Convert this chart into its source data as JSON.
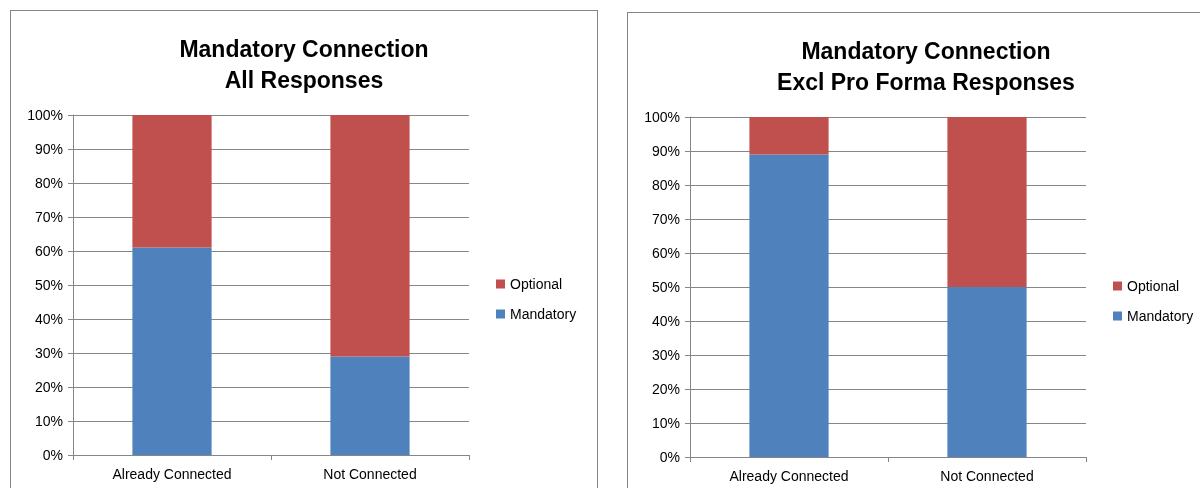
{
  "chart_data": [
    {
      "type": "bar",
      "title": "Mandatory Connection\nAll Responses",
      "categories": [
        "Already Connected",
        "Not Connected"
      ],
      "series": [
        {
          "name": "Mandatory",
          "color": "#4f81bd",
          "values": [
            61,
            29
          ]
        },
        {
          "name": "Optional",
          "color": "#c0504d",
          "values": [
            39,
            71
          ]
        }
      ],
      "stacked": true,
      "ylim": [
        0,
        100
      ],
      "yticks": [
        {
          "value": 0,
          "label": "0%"
        },
        {
          "value": 10,
          "label": "10%"
        },
        {
          "value": 20,
          "label": "20%"
        },
        {
          "value": 30,
          "label": "30%"
        },
        {
          "value": 40,
          "label": "40%"
        },
        {
          "value": 50,
          "label": "50%"
        },
        {
          "value": 60,
          "label": "60%"
        },
        {
          "value": 70,
          "label": "70%"
        },
        {
          "value": 80,
          "label": "80%"
        },
        {
          "value": 90,
          "label": "90%"
        },
        {
          "value": 100,
          "label": "100%"
        }
      ],
      "grid": "y",
      "legend": "right"
    },
    {
      "type": "bar",
      "title": "Mandatory Connection\nExcl Pro Forma Responses",
      "categories": [
        "Already Connected",
        "Not Connected"
      ],
      "series": [
        {
          "name": "Mandatory",
          "color": "#4f81bd",
          "values": [
            89,
            50
          ]
        },
        {
          "name": "Optional",
          "color": "#c0504d",
          "values": [
            11,
            50
          ]
        }
      ],
      "stacked": true,
      "ylim": [
        0,
        100
      ],
      "yticks": [
        {
          "value": 0,
          "label": "0%"
        },
        {
          "value": 10,
          "label": "10%"
        },
        {
          "value": 20,
          "label": "20%"
        },
        {
          "value": 30,
          "label": "30%"
        },
        {
          "value": 40,
          "label": "40%"
        },
        {
          "value": 50,
          "label": "50%"
        },
        {
          "value": 60,
          "label": "60%"
        },
        {
          "value": 70,
          "label": "70%"
        },
        {
          "value": 80,
          "label": "80%"
        },
        {
          "value": 90,
          "label": "90%"
        },
        {
          "value": 100,
          "label": "100%"
        }
      ],
      "grid": "y",
      "legend": "right"
    }
  ]
}
